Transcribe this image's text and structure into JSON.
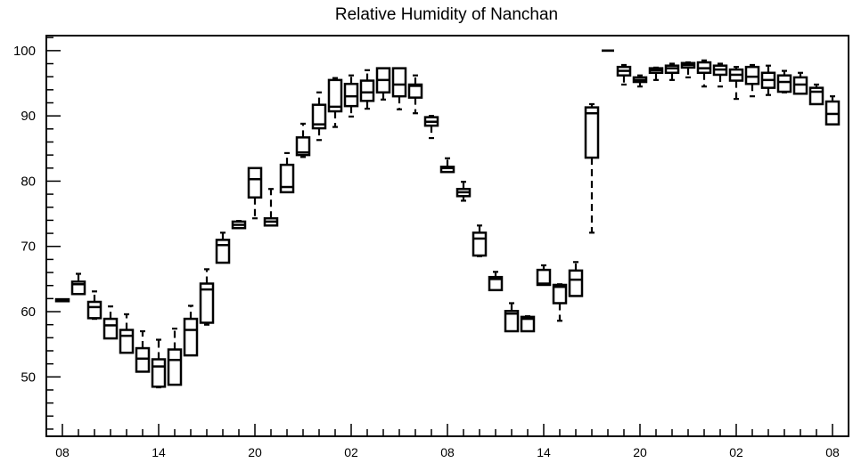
{
  "chart_data": {
    "type": "box",
    "title": "Relative Humidity of Nanchan",
    "ylim": [
      40.9,
      102.3
    ],
    "y_ticks": [
      50,
      60,
      70,
      80,
      90,
      100
    ],
    "x_tick_labels": [
      "08",
      "14",
      "20",
      "02",
      "08",
      "14",
      "20",
      "02",
      "08"
    ],
    "grid": false,
    "boxes": [
      {
        "hour": 8,
        "min": 61.6,
        "q1": 61.6,
        "median": 61.75,
        "q3": 61.9,
        "max": 61.9
      },
      {
        "hour": 9,
        "min": 62.7,
        "q1": 62.7,
        "median": 64.2,
        "q3": 64.6,
        "max": 65.8
      },
      {
        "hour": 10,
        "min": 58.9,
        "q1": 59.0,
        "median": 60.7,
        "q3": 61.5,
        "max": 63.1
      },
      {
        "hour": 11,
        "min": 55.9,
        "q1": 55.9,
        "median": 57.9,
        "q3": 58.9,
        "max": 60.8
      },
      {
        "hour": 12,
        "min": 53.7,
        "q1": 53.7,
        "median": 56.3,
        "q3": 57.2,
        "max": 59.6
      },
      {
        "hour": 13,
        "min": 50.8,
        "q1": 50.8,
        "median": 52.8,
        "q3": 54.4,
        "max": 57.0
      },
      {
        "hour": 14,
        "min": 48.4,
        "q1": 48.5,
        "median": 51.6,
        "q3": 52.7,
        "max": 55.7
      },
      {
        "hour": 15,
        "min": 48.8,
        "q1": 48.8,
        "median": 52.6,
        "q3": 54.2,
        "max": 57.4
      },
      {
        "hour": 16,
        "min": 53.3,
        "q1": 53.3,
        "median": 57.2,
        "q3": 58.9,
        "max": 60.9
      },
      {
        "hour": 17,
        "min": 58.0,
        "q1": 58.3,
        "median": 63.4,
        "q3": 64.3,
        "max": 66.5
      },
      {
        "hour": 18,
        "min": 67.5,
        "q1": 67.5,
        "median": 70.2,
        "q3": 71.0,
        "max": 72.1
      },
      {
        "hour": 19,
        "min": 72.8,
        "q1": 72.8,
        "median": 73.3,
        "q3": 73.8,
        "max": 73.9
      },
      {
        "hour": 20,
        "min": 74.3,
        "q1": 77.5,
        "median": 80.3,
        "q3": 82.0,
        "max": 82.0
      },
      {
        "hour": 21,
        "min": 73.2,
        "q1": 73.2,
        "median": 73.8,
        "q3": 74.3,
        "max": 78.8
      },
      {
        "hour": 22,
        "min": 78.3,
        "q1": 78.3,
        "median": 79.1,
        "q3": 82.5,
        "max": 84.3
      },
      {
        "hour": 23,
        "min": 83.7,
        "q1": 84.0,
        "median": 84.4,
        "q3": 86.7,
        "max": 88.8
      },
      {
        "hour": 0,
        "min": 86.3,
        "q1": 88.1,
        "median": 88.7,
        "q3": 91.7,
        "max": 93.6
      },
      {
        "hour": 1,
        "min": 88.3,
        "q1": 90.7,
        "median": 91.4,
        "q3": 95.5,
        "max": 95.8
      },
      {
        "hour": 2,
        "min": 89.9,
        "q1": 91.5,
        "median": 93.0,
        "q3": 94.9,
        "max": 96.2
      },
      {
        "hour": 3,
        "min": 91.1,
        "q1": 92.3,
        "median": 93.6,
        "q3": 95.4,
        "max": 97.0
      },
      {
        "hour": 4,
        "min": 92.5,
        "q1": 93.6,
        "median": 95.5,
        "q3": 97.3,
        "max": 97.3
      },
      {
        "hour": 5,
        "min": 91.0,
        "q1": 93.0,
        "median": 94.8,
        "q3": 97.3,
        "max": 97.3
      },
      {
        "hour": 6,
        "min": 90.4,
        "q1": 92.8,
        "median": 94.6,
        "q3": 94.8,
        "max": 96.2
      },
      {
        "hour": 7,
        "min": 86.6,
        "q1": 88.5,
        "median": 89.1,
        "q3": 89.8,
        "max": 90.0
      },
      {
        "hour": 8,
        "min": 81.4,
        "q1": 81.4,
        "median": 82.0,
        "q3": 82.2,
        "max": 83.5
      },
      {
        "hour": 9,
        "min": 77.0,
        "q1": 77.7,
        "median": 78.3,
        "q3": 78.8,
        "max": 79.9
      },
      {
        "hour": 10,
        "min": 68.5,
        "q1": 68.6,
        "median": 71.2,
        "q3": 72.1,
        "max": 73.2
      },
      {
        "hour": 11,
        "min": 63.3,
        "q1": 63.3,
        "median": 65.0,
        "q3": 65.3,
        "max": 66.1
      },
      {
        "hour": 12,
        "min": 57.0,
        "q1": 57.0,
        "median": 59.7,
        "q3": 60.1,
        "max": 61.3
      },
      {
        "hour": 13,
        "min": 57.0,
        "q1": 57.0,
        "median": 58.9,
        "q3": 59.2,
        "max": 59.3
      },
      {
        "hour": 14,
        "min": 64.1,
        "q1": 64.1,
        "median": 64.3,
        "q3": 66.4,
        "max": 67.1
      },
      {
        "hour": 15,
        "min": 58.6,
        "q1": 61.3,
        "median": 63.8,
        "q3": 64.1,
        "max": 64.2
      },
      {
        "hour": 16,
        "min": 62.4,
        "q1": 62.4,
        "median": 64.9,
        "q3": 66.3,
        "max": 67.6
      },
      {
        "hour": 17,
        "min": 72.1,
        "q1": 83.6,
        "median": 90.4,
        "q3": 91.3,
        "max": 91.8
      },
      {
        "hour": 18,
        "min": 100.0,
        "q1": 100.0,
        "median": 100.0,
        "q3": 100.0,
        "max": 100.0
      },
      {
        "hour": 19,
        "min": 94.8,
        "q1": 96.2,
        "median": 96.9,
        "q3": 97.5,
        "max": 97.8
      },
      {
        "hour": 20,
        "min": 94.5,
        "q1": 95.2,
        "median": 95.5,
        "q3": 95.9,
        "max": 96.2
      },
      {
        "hour": 21,
        "min": 95.5,
        "q1": 96.6,
        "median": 97.0,
        "q3": 97.3,
        "max": 97.4
      },
      {
        "hour": 22,
        "min": 95.5,
        "q1": 96.6,
        "median": 97.3,
        "q3": 97.7,
        "max": 98.0
      },
      {
        "hour": 23,
        "min": 95.9,
        "q1": 97.4,
        "median": 97.8,
        "q3": 98.1,
        "max": 98.2
      },
      {
        "hour": 0,
        "min": 94.5,
        "q1": 96.6,
        "median": 97.3,
        "q3": 98.2,
        "max": 98.5
      },
      {
        "hour": 1,
        "min": 94.5,
        "q1": 96.3,
        "median": 97.1,
        "q3": 97.7,
        "max": 98.0
      },
      {
        "hour": 2,
        "min": 92.6,
        "q1": 95.4,
        "median": 96.3,
        "q3": 97.1,
        "max": 97.5
      },
      {
        "hour": 3,
        "min": 93.0,
        "q1": 94.9,
        "median": 96.0,
        "q3": 97.5,
        "max": 97.8
      },
      {
        "hour": 4,
        "min": 93.2,
        "q1": 94.3,
        "median": 95.5,
        "q3": 96.6,
        "max": 97.7
      },
      {
        "hour": 5,
        "min": 93.6,
        "q1": 93.7,
        "median": 95.2,
        "q3": 96.2,
        "max": 96.9
      },
      {
        "hour": 6,
        "min": 93.4,
        "q1": 93.4,
        "median": 94.8,
        "q3": 95.9,
        "max": 96.6
      },
      {
        "hour": 7,
        "min": 91.8,
        "q1": 91.8,
        "median": 93.7,
        "q3": 94.3,
        "max": 94.8
      },
      {
        "hour": 8,
        "min": 88.7,
        "q1": 88.7,
        "median": 90.3,
        "q3": 92.2,
        "max": 93.0
      }
    ]
  }
}
